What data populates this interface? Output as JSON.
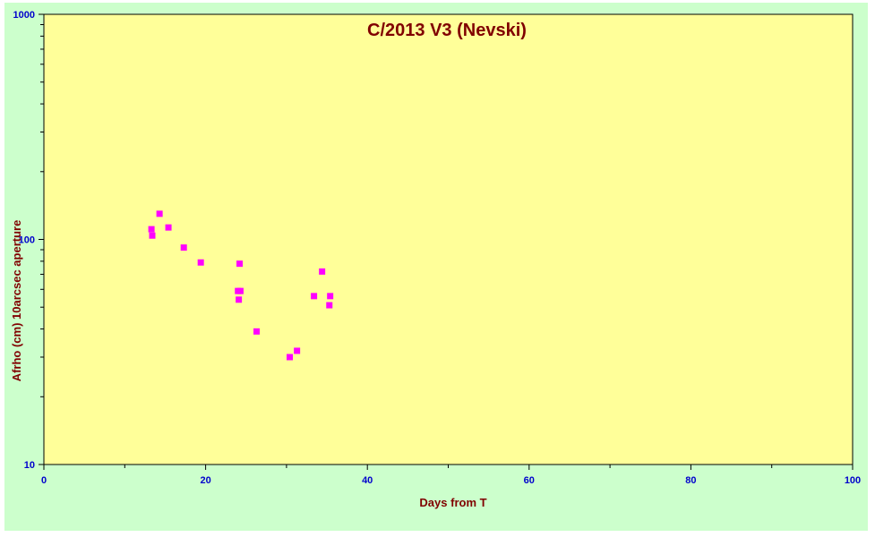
{
  "chart_data": {
    "type": "scatter",
    "title": "C/2013 V3 (Nevski)",
    "xlabel": "Days from  T",
    "ylabel": "Afrho (cm) 10arcsec aperture",
    "xlim": [
      0,
      100
    ],
    "ylim": [
      10,
      1000
    ],
    "yscale": "log",
    "x_ticks": [
      0,
      20,
      40,
      60,
      80,
      100
    ],
    "y_ticks": [
      10,
      100,
      1000
    ],
    "grid": false,
    "colors": {
      "plot_background": "#ffff99",
      "frame_background": "#ccffcc",
      "marker": "#ff00ff",
      "title": "#800000",
      "axis_label": "#800000",
      "tick_label": "#0000cc"
    },
    "series": [
      {
        "marker": "square",
        "x": [
          13.3,
          13.4,
          14.3,
          15.4,
          17.3,
          19.4,
          24.0,
          24.1,
          24.2,
          24.3,
          26.3,
          30.4,
          31.3,
          33.4,
          34.4,
          35.3,
          35.4
        ],
        "y": [
          111,
          104,
          130,
          113,
          92,
          79,
          59,
          54,
          78,
          59,
          39,
          30,
          32,
          56,
          72,
          51,
          56
        ]
      }
    ]
  }
}
